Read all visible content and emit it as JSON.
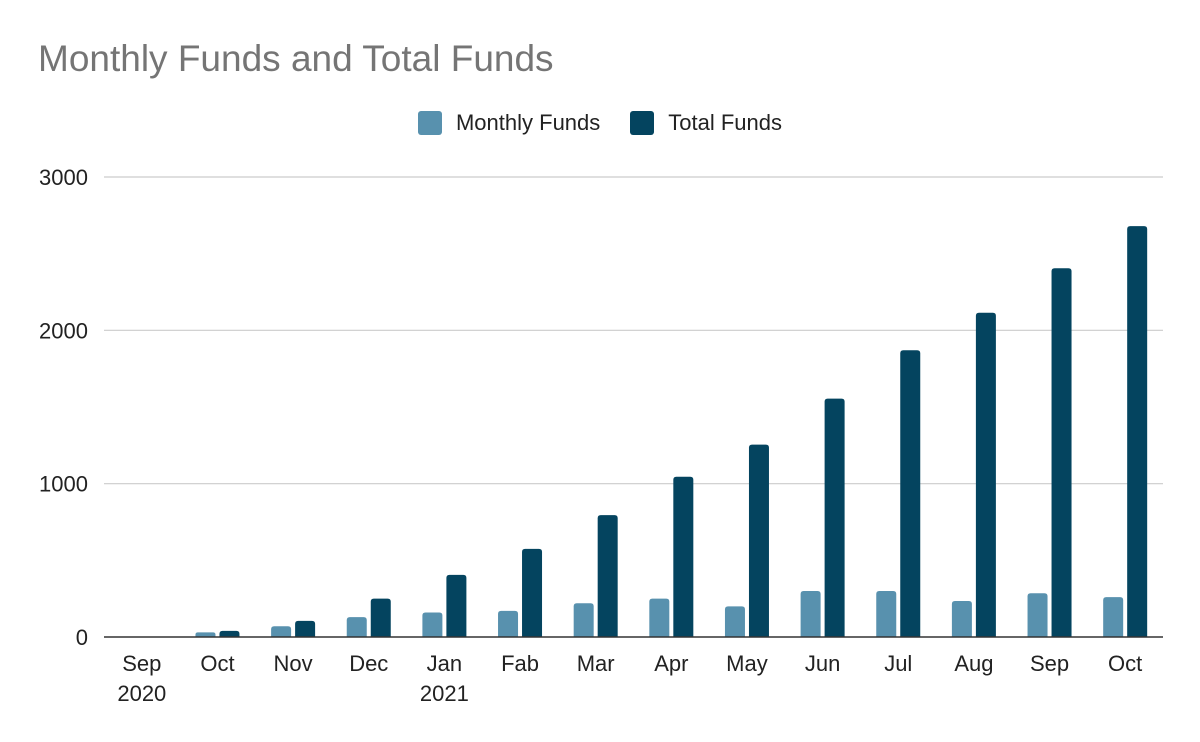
{
  "chart_data": {
    "type": "bar",
    "title": "Monthly Funds and Total Funds",
    "xlabel": "",
    "ylabel": "",
    "ylim": [
      0,
      3000
    ],
    "yticks": [
      "0",
      "1000",
      "2000",
      "3000"
    ],
    "categories": [
      [
        "Sep",
        "2020"
      ],
      [
        "Oct"
      ],
      [
        "Nov"
      ],
      [
        "Dec"
      ],
      [
        "Jan",
        "2021"
      ],
      [
        "Fab"
      ],
      [
        "Mar"
      ],
      [
        "Apr"
      ],
      [
        "May"
      ],
      [
        "Jun"
      ],
      [
        "Jul"
      ],
      [
        "Aug"
      ],
      [
        "Sep"
      ],
      [
        "Oct"
      ]
    ],
    "series": [
      {
        "name": "Monthly Funds",
        "color": "#5891ae",
        "values": [
          0,
          30,
          70,
          130,
          160,
          170,
          220,
          250,
          200,
          300,
          300,
          235,
          285,
          260
        ]
      },
      {
        "name": "Total Funds",
        "color": "#04445f",
        "values": [
          0,
          40,
          105,
          250,
          405,
          575,
          795,
          1045,
          1255,
          1555,
          1870,
          2115,
          2405,
          2680
        ]
      }
    ],
    "grid": true,
    "legend_position": "top-center"
  }
}
